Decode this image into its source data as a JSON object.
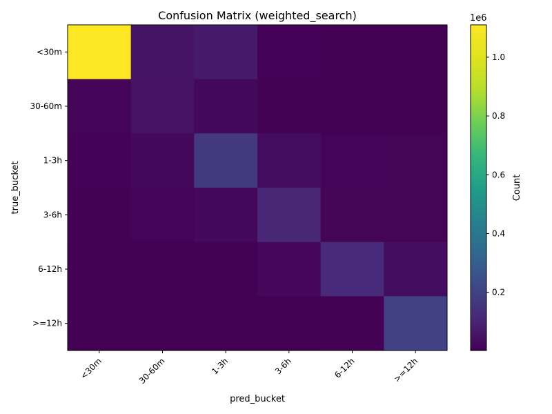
{
  "chart_data": {
    "type": "heatmap",
    "title": "Confusion Matrix (weighted_search)",
    "xlabel": "pred_bucket",
    "ylabel": "true_bucket",
    "x_categories": [
      "<30m",
      "30-60m",
      "1-3h",
      "3-6h",
      "6-12h",
      ">=12h"
    ],
    "y_categories": [
      "<30m",
      "30-60m",
      "1-3h",
      "3-6h",
      "6-12h",
      ">=12h"
    ],
    "values": [
      [
        1110000,
        55000,
        75000,
        8000,
        6000,
        5000
      ],
      [
        10000,
        50000,
        25000,
        5000,
        3000,
        3000
      ],
      [
        8000,
        25000,
        170000,
        35000,
        10000,
        12000
      ],
      [
        4000,
        10000,
        25000,
        110000,
        12000,
        12000
      ],
      [
        3000,
        3000,
        4000,
        20000,
        120000,
        35000
      ],
      [
        2000,
        2000,
        2000,
        2000,
        5000,
        200000
      ]
    ],
    "colormap": "viridis",
    "vmin": 2000,
    "vmax": 1110000,
    "colorbar": {
      "label": "Count",
      "ticks": [
        0.2,
        0.4,
        0.6,
        0.8,
        1.0
      ],
      "tick_labels": [
        "0.2",
        "0.4",
        "0.6",
        "0.8",
        "1.0"
      ],
      "offset_text": "1e6",
      "scale": 1000000
    },
    "grid": false
  }
}
